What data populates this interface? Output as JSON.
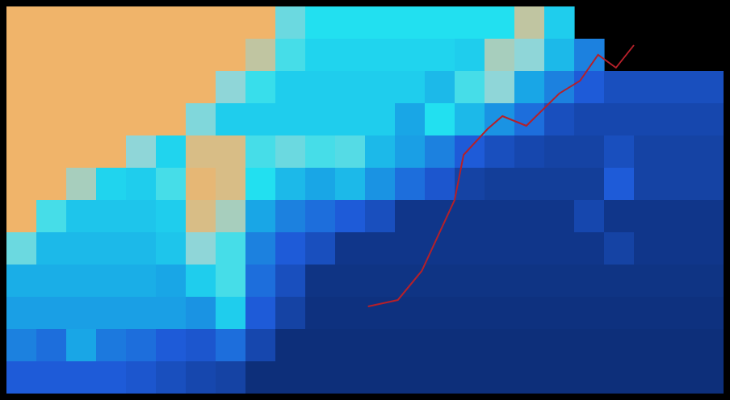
{
  "chart_data": {
    "type": "heatmap",
    "xlim": [
      0,
      24
    ],
    "ylim": [
      0,
      12
    ],
    "tick_labels": false,
    "grid": false,
    "color_range": [
      0,
      100
    ],
    "cells": [
      [
        100,
        100,
        100,
        100,
        100,
        100,
        100,
        100,
        100,
        75,
        65,
        65,
        65,
        65,
        65,
        65,
        65,
        90,
        60,
        null,
        null,
        null,
        null,
        null
      ],
      [
        100,
        100,
        100,
        100,
        100,
        100,
        100,
        100,
        90,
        70,
        62,
        62,
        62,
        62,
        62,
        60,
        85,
        80,
        55,
        40,
        null,
        null,
        null,
        null
      ],
      [
        100,
        100,
        100,
        100,
        100,
        100,
        100,
        80,
        68,
        60,
        60,
        60,
        60,
        60,
        55,
        70,
        80,
        50,
        40,
        30,
        25,
        25,
        25,
        25
      ],
      [
        100,
        100,
        100,
        100,
        100,
        100,
        78,
        60,
        60,
        60,
        60,
        60,
        60,
        50,
        65,
        55,
        45,
        35,
        25,
        22,
        22,
        22,
        22,
        22
      ],
      [
        100,
        100,
        100,
        100,
        80,
        62,
        95,
        95,
        70,
        75,
        70,
        72,
        55,
        48,
        40,
        30,
        25,
        22,
        20,
        20,
        25,
        20,
        20,
        20
      ],
      [
        100,
        100,
        85,
        62,
        60,
        70,
        98,
        95,
        65,
        55,
        50,
        55,
        45,
        35,
        28,
        20,
        18,
        18,
        18,
        18,
        30,
        20,
        20,
        20
      ],
      [
        100,
        70,
        58,
        58,
        58,
        60,
        95,
        85,
        50,
        40,
        35,
        30,
        25,
        15,
        15,
        15,
        15,
        15,
        15,
        22,
        15,
        15,
        15,
        15
      ],
      [
        75,
        55,
        55,
        55,
        55,
        58,
        80,
        70,
        40,
        30,
        25,
        15,
        15,
        15,
        15,
        15,
        15,
        15,
        15,
        15,
        20,
        15,
        15,
        15
      ],
      [
        52,
        52,
        52,
        52,
        52,
        50,
        60,
        70,
        35,
        25,
        14,
        14,
        14,
        14,
        14,
        14,
        14,
        14,
        14,
        14,
        14,
        14,
        14,
        14
      ],
      [
        48,
        48,
        48,
        48,
        48,
        48,
        45,
        60,
        30,
        20,
        13,
        13,
        13,
        13,
        13,
        13,
        13,
        13,
        13,
        13,
        13,
        13,
        13,
        13
      ],
      [
        40,
        35,
        50,
        38,
        35,
        30,
        28,
        35,
        22,
        12,
        12,
        12,
        12,
        12,
        12,
        12,
        12,
        12,
        12,
        12,
        12,
        12,
        12,
        12
      ],
      [
        30,
        30,
        30,
        30,
        28,
        25,
        22,
        20,
        12,
        12,
        12,
        12,
        12,
        12,
        12,
        12,
        12,
        12,
        12,
        12,
        12,
        12,
        12,
        12
      ]
    ],
    "track": {
      "color": "#b5202a",
      "x": [
        12.1,
        13.1,
        13.9,
        15.0,
        15.3,
        16.1,
        16.6,
        17.4,
        18.5,
        19.2,
        19.8,
        20.4,
        21.0
      ],
      "y": [
        9.3,
        9.1,
        8.2,
        6.0,
        4.6,
        3.8,
        3.4,
        3.7,
        2.7,
        2.3,
        1.5,
        1.9,
        1.2
      ]
    }
  }
}
